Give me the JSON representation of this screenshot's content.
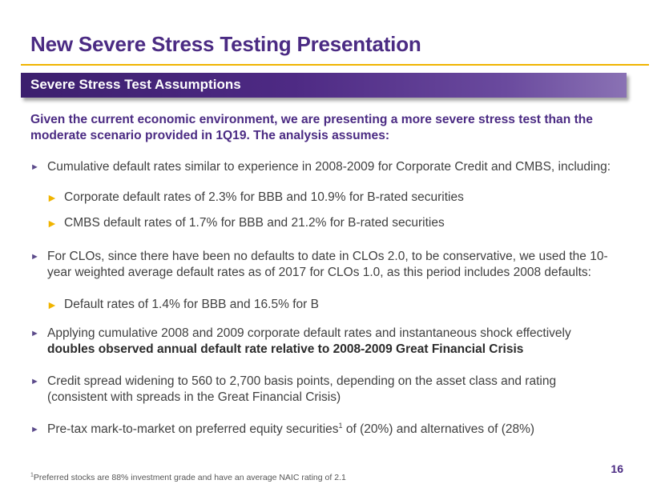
{
  "header": {
    "title": "New Severe Stress Testing Presentation",
    "banner": "Severe Stress Test Assumptions"
  },
  "intro": "Given the current economic environment, we are presenting a more severe stress test than the moderate scenario provided in 1Q19. The analysis assumes:",
  "bullets": {
    "b1": "Cumulative default rates similar to experience in 2008-2009 for Corporate Credit and CMBS, including:",
    "b1_sub1": "Corporate default rates of 2.3% for BBB and 10.9% for B-rated securities",
    "b1_sub2": "CMBS default rates of 1.7% for BBB and 21.2% for B-rated securities",
    "b2": "For CLOs, since there have been no defaults to date in CLOs 2.0, to be conservative, we used the 10-year weighted average default rates as of 2017 for CLOs 1.0, as this period includes 2008 defaults:",
    "b2_sub1": "Default rates of 1.4% for BBB and 16.5% for B",
    "b3_plain": "Applying cumulative 2008 and 2009 corporate default rates and instantaneous shock effectively",
    "b3_bold": "doubles observed annual default rate relative to 2008-2009 Great Financial Crisis",
    "b4": "Credit spread widening to 560 to 2,700 basis points, depending on the asset class and rating (consistent with spreads in the Great Financial Crisis)",
    "b5_pre": "Pre-tax mark-to-market on preferred equity securities",
    "b5_sup": "1",
    "b5_post": " of (20%) and alternatives of (28%)"
  },
  "footnote": {
    "sup": "1",
    "text": "Preferred stocks are 88% investment grade and have an average NAIC rating of 2.1"
  },
  "page_number": "16",
  "colors": {
    "brand_purple": "#4b2b83",
    "accent_gold": "#f0b400"
  }
}
